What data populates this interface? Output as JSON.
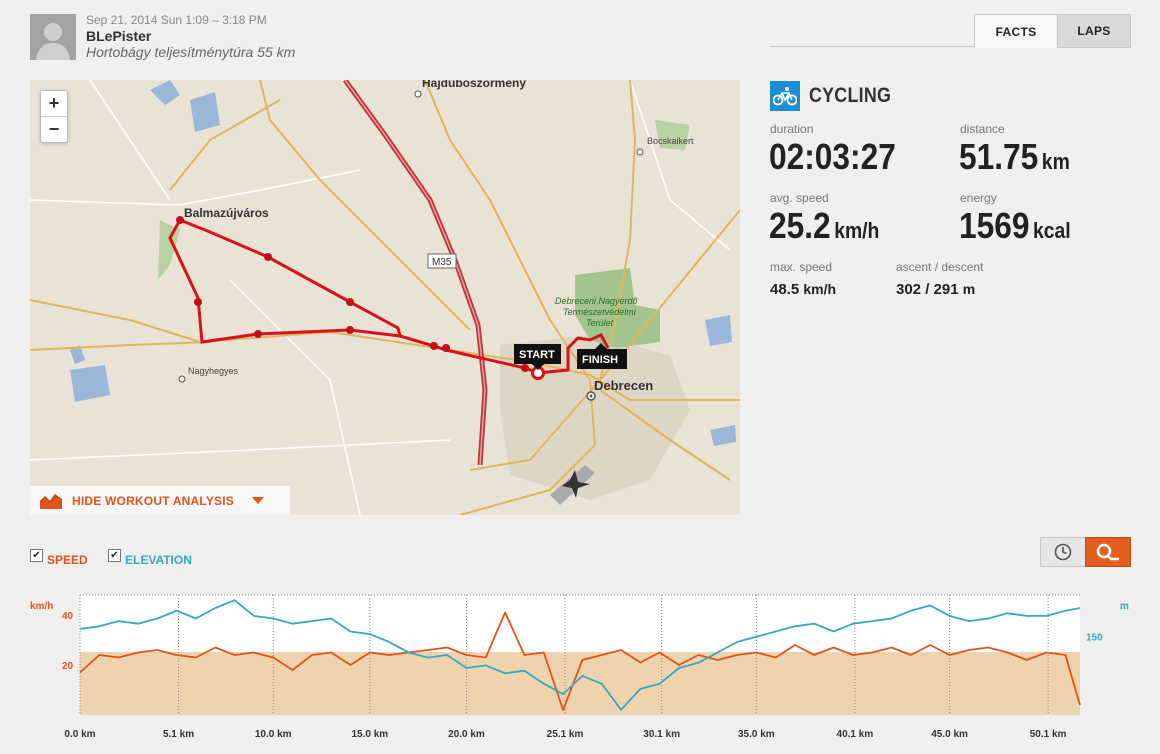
{
  "header": {
    "date": "Sep 21, 2014 Sun 1:09 – 3:18 PM",
    "user": "BLePister",
    "workout_title": "Hortobágy teljesítménytúra 55 km"
  },
  "tabs": [
    {
      "label": "FACTS",
      "active": true
    },
    {
      "label": "LAPS",
      "active": false
    }
  ],
  "map": {
    "zoom_in": "+",
    "zoom_out": "−",
    "labels": {
      "hajduboszormeny": "Hajduboszormeny",
      "bocskaikert": "Bocskaikert",
      "balmazujvaros": "Balmazújváros",
      "m35": "M35",
      "nagyerdo1": "Debreceni Nagyerdő",
      "nagyerdo2": "Természetvédelmi",
      "nagyerdo3": "Terület",
      "nagyhegyes": "Nagyhegyes",
      "debrecen": "Debrecen"
    },
    "start_label": "START",
    "finish_label": "FINISH",
    "hide_analysis": "HIDE WORKOUT ANALYSIS",
    "colors": {
      "route": "#d8111b",
      "motorway": "#c0333c",
      "road": "#e2b55c",
      "forest": "#9fc189",
      "water": "#8fb0d8",
      "urban": "#dbd4c3"
    }
  },
  "stats": {
    "sport": "CYCLING",
    "sport_icon": "bicycle-icon",
    "duration": {
      "label": "duration",
      "value": "02:03:27"
    },
    "distance": {
      "label": "distance",
      "value": "51.75",
      "unit": "km"
    },
    "avg_speed": {
      "label": "avg. speed",
      "value": "25.2",
      "unit": "km/h"
    },
    "energy": {
      "label": "energy",
      "value": "1569",
      "unit": "kcal"
    },
    "max_speed": {
      "label": "max. speed",
      "value": "48.5",
      "unit": "km/h"
    },
    "ascent_descent": {
      "label": "ascent / descent",
      "value": "302 / 291",
      "unit": "m"
    }
  },
  "analysis": {
    "legend": [
      {
        "label": "SPEED",
        "checked": true,
        "color": "#e0531a"
      },
      {
        "label": "ELEVATION",
        "checked": true,
        "color": "#35a8c2"
      }
    ],
    "buttons": {
      "time": "clock-icon",
      "distance": "distance-icon"
    },
    "accent": "#e35f20"
  },
  "chart_data": {
    "type": "line",
    "x_unit": "km",
    "xlim": [
      0,
      51.75
    ],
    "x_tick_labels": [
      "0.0 km",
      "5.1 km",
      "10.0 km",
      "15.0 km",
      "20.0 km",
      "25.1 km",
      "30.1 km",
      "35.0 km",
      "40.1 km",
      "45.0 km",
      "50.1 km"
    ],
    "x_tick_values": [
      0,
      5.1,
      10.0,
      15.0,
      20.0,
      25.1,
      30.1,
      35.0,
      40.1,
      45.0,
      50.1
    ],
    "y_left": {
      "unit": "km/h",
      "ticks": [
        "40",
        "20"
      ],
      "tick_values": [
        40,
        20
      ],
      "range": [
        0,
        48
      ]
    },
    "y_right": {
      "unit": "m",
      "ticks": [
        "150"
      ],
      "tick_values": [
        150
      ],
      "range": [
        0,
        230
      ]
    },
    "series": [
      {
        "name": "SPEED",
        "axis": "left",
        "color": "#e0531a",
        "x": [
          0,
          1,
          2,
          3,
          4,
          5,
          6,
          7,
          8,
          9,
          10,
          11,
          12,
          13,
          14,
          15,
          16,
          17,
          18,
          19,
          20,
          21,
          22,
          23,
          24,
          25,
          26,
          27,
          28,
          29,
          30,
          31,
          32,
          33,
          34,
          35,
          36,
          37,
          38,
          39,
          40,
          41,
          42,
          43,
          44,
          45,
          46,
          47,
          48,
          49,
          50,
          51,
          51.75
        ],
        "values": [
          17,
          24,
          23,
          25,
          26,
          24,
          23,
          27,
          24,
          25,
          23,
          18,
          24,
          25,
          20,
          25,
          24,
          25,
          26,
          27,
          24,
          23,
          41,
          24,
          25,
          2,
          22,
          24,
          26,
          21,
          25,
          20,
          24,
          22,
          24,
          25,
          23,
          28,
          24,
          27,
          24,
          25,
          27,
          24,
          28,
          24,
          26,
          27,
          25,
          22,
          25,
          24,
          4
        ]
      },
      {
        "name": "ELEVATION",
        "axis": "right",
        "color": "#35a8c2",
        "x": [
          0,
          1,
          2,
          3,
          4,
          5,
          6,
          7,
          8,
          9,
          10,
          11,
          12,
          13,
          14,
          15,
          16,
          17,
          18,
          19,
          20,
          21,
          22,
          23,
          24,
          25,
          26,
          27,
          28,
          29,
          30,
          31,
          32,
          33,
          34,
          35,
          36,
          37,
          38,
          39,
          40,
          41,
          42,
          43,
          44,
          45,
          46,
          47,
          48,
          49,
          50,
          51,
          51.75
        ],
        "values": [
          165,
          170,
          180,
          175,
          185,
          200,
          185,
          205,
          220,
          190,
          185,
          175,
          180,
          185,
          160,
          155,
          140,
          120,
          110,
          115,
          90,
          95,
          80,
          85,
          60,
          40,
          75,
          60,
          10,
          50,
          60,
          90,
          100,
          120,
          140,
          150,
          160,
          170,
          175,
          160,
          175,
          180,
          185,
          200,
          210,
          190,
          180,
          185,
          195,
          190,
          190,
          200,
          205
        ]
      }
    ],
    "reference_band": {
      "axis": "left",
      "value": 25.2
    }
  }
}
